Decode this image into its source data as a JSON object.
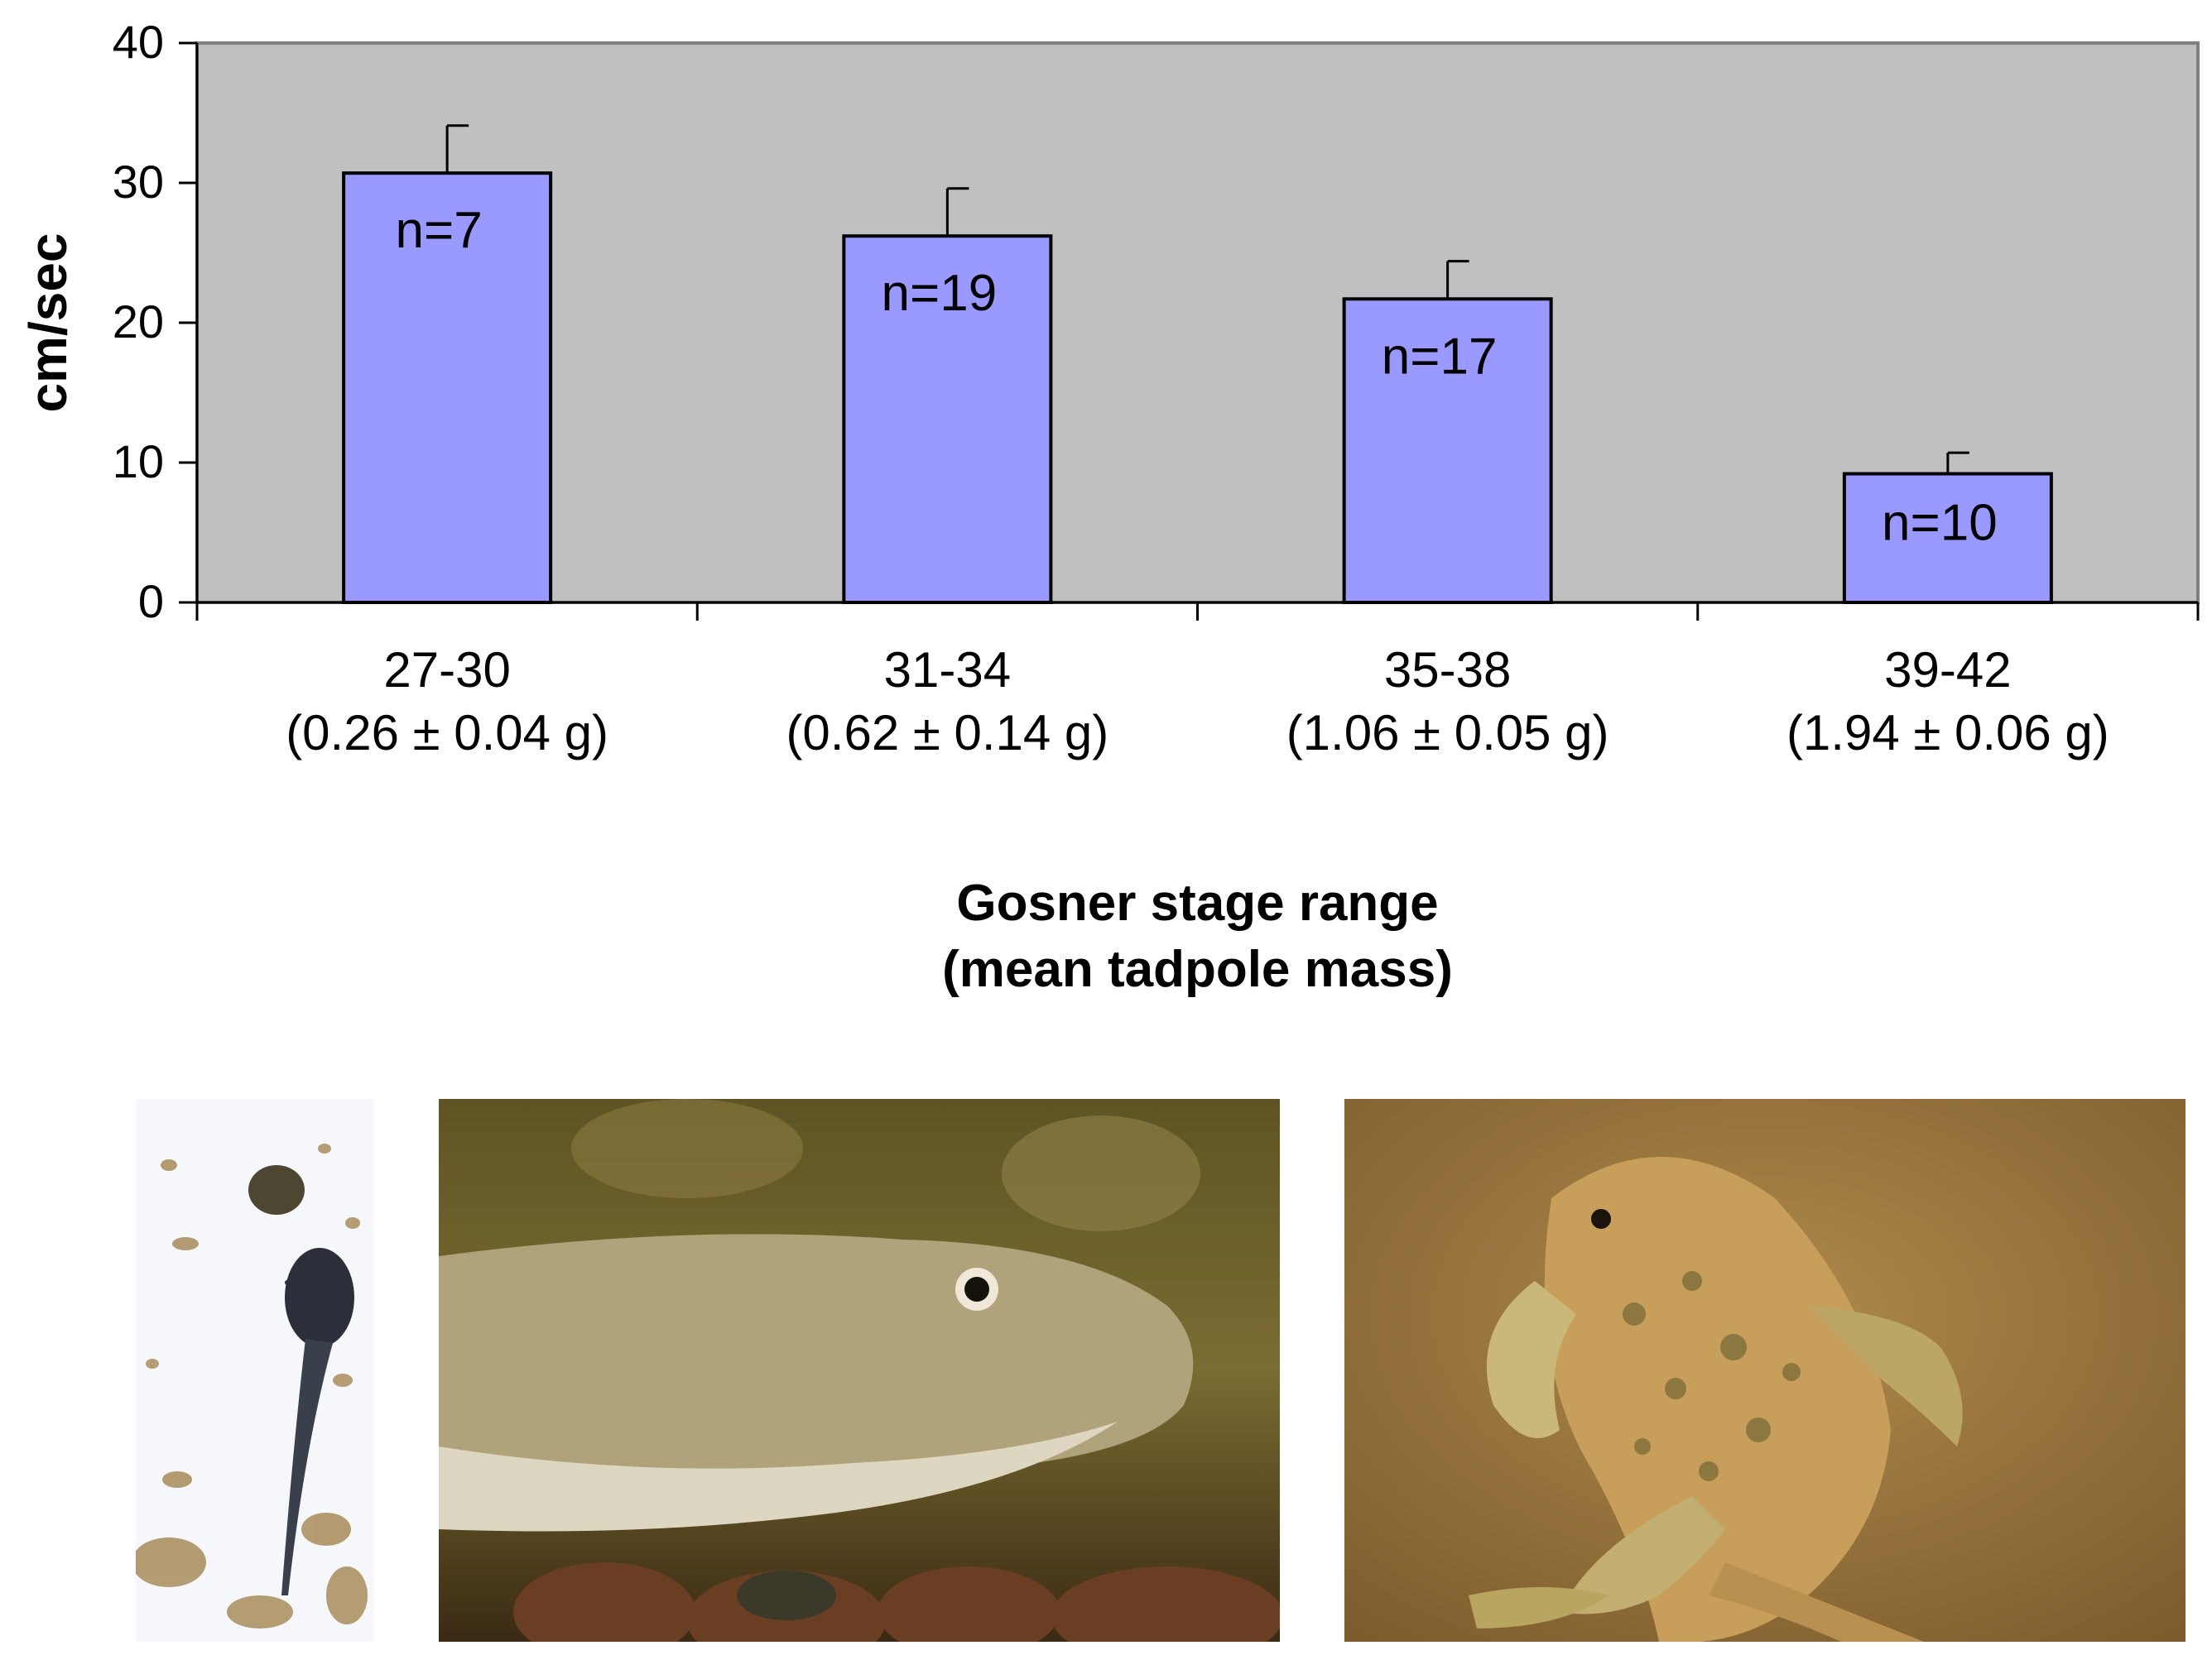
{
  "chart_data": {
    "type": "bar",
    "categories": [
      "27-30",
      "31-34",
      "35-38",
      "39-42"
    ],
    "category_sublabels": [
      "(0.26 ± 0.04 g)",
      "(0.62 ± 0.14 g)",
      "(1.06 ± 0.05 g)",
      "(1.94 ± 0.06 g)"
    ],
    "values": [
      30.7,
      26.2,
      21.7,
      9.2
    ],
    "error_upper": [
      3.4,
      3.4,
      2.7,
      1.5
    ],
    "bar_labels": [
      "n=7",
      "n=19",
      "n=17",
      "n=10"
    ],
    "ylabel": "cm/sec",
    "xlabel_lines": [
      "Gosner stage range",
      "(mean tadpole mass)"
    ],
    "ylim": [
      0,
      40
    ],
    "yticks": [
      0,
      10,
      20,
      30,
      40
    ],
    "grid": false,
    "colors": {
      "bar": "#9999ff",
      "plot_background": "#c0c0c0",
      "bar_edge": "#000000",
      "plot_border": "#808080"
    }
  },
  "photos": [
    {
      "subject": "tadpole-early-stage",
      "colors": {
        "bg": "#f7f8fb",
        "body": "#2b2f3a",
        "debris": "#a38a5a"
      }
    },
    {
      "subject": "tadpole-mid-stage",
      "colors": {
        "bg": "#6e6228",
        "body": "#b0a27a",
        "belly": "#e0dccc",
        "pebbles": "#6a3e22"
      }
    },
    {
      "subject": "metamorphosing-froglet",
      "colors": {
        "bg": "#a07a40",
        "body": "#c79e5a",
        "spots": "#6e6234",
        "legs": "#b8a560"
      }
    }
  ]
}
